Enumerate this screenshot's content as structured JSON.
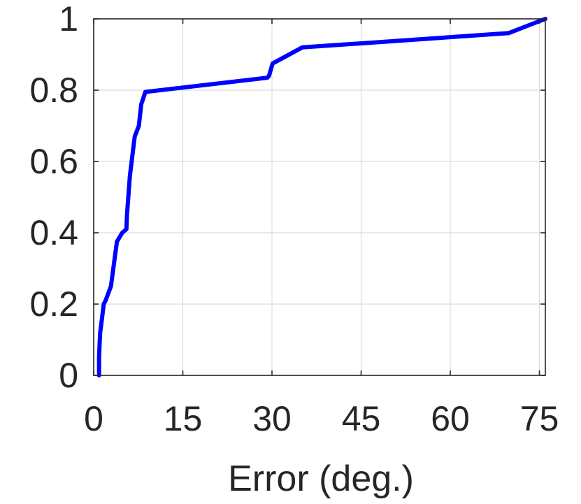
{
  "chart_data": {
    "type": "line",
    "title": "",
    "xlabel": "Error (deg.)",
    "ylabel": "",
    "xlim": [
      0,
      76
    ],
    "ylim": [
      0,
      1
    ],
    "xticks": [
      0,
      15,
      30,
      45,
      60,
      75
    ],
    "yticks": [
      0,
      0.2,
      0.4,
      0.6,
      0.8,
      1
    ],
    "xtick_labels": [
      "0",
      "15",
      "30",
      "45",
      "60",
      "75"
    ],
    "ytick_labels": [
      "0",
      "0.2",
      "0.4",
      "0.6",
      "0.8",
      "1"
    ],
    "grid": true,
    "series": [
      {
        "color": "#0000ff",
        "x": [
          0.9,
          0.9,
          1.0,
          1.1,
          1.4,
          1.7,
          2.0,
          2.9,
          3.9,
          4.8,
          5.5,
          5.6,
          6.1,
          6.9,
          7.6,
          8.0,
          8.7,
          29.2,
          29.5,
          30.1,
          35.1,
          69.8,
          76.0
        ],
        "y": [
          0.0,
          0.05,
          0.09,
          0.12,
          0.16,
          0.2,
          0.21,
          0.25,
          0.375,
          0.4,
          0.41,
          0.45,
          0.56,
          0.67,
          0.7,
          0.76,
          0.795,
          0.835,
          0.84,
          0.875,
          0.92,
          0.96,
          1.0
        ]
      }
    ]
  }
}
